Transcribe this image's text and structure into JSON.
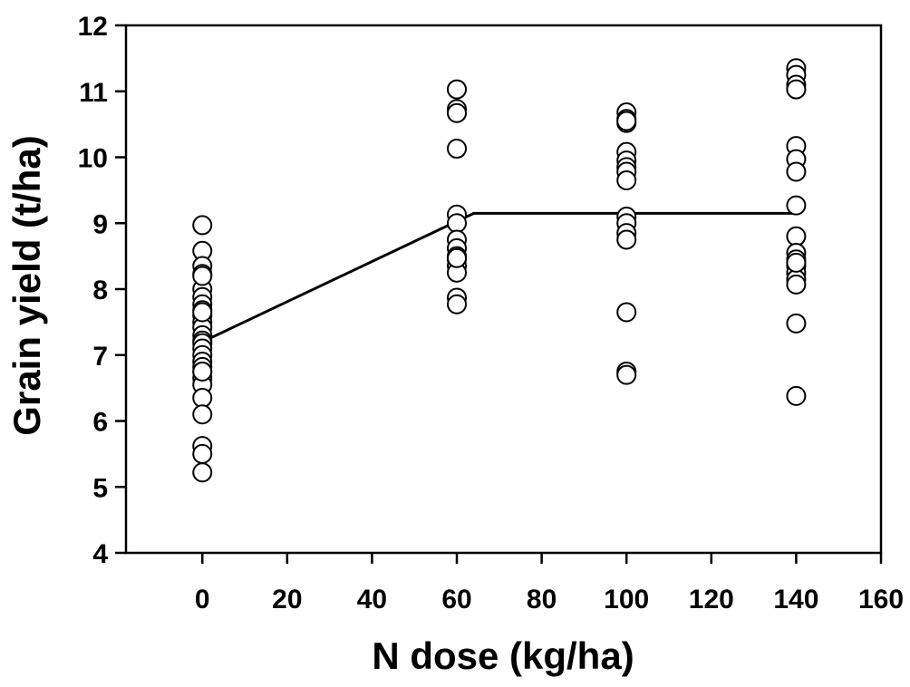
{
  "chart_data": {
    "type": "scatter",
    "title": "",
    "xlabel": "N dose (kg/ha)",
    "ylabel": "Grain yield (t/ha)",
    "xlim": [
      -18,
      160
    ],
    "ylim": [
      4,
      12
    ],
    "xticks": [
      0,
      20,
      40,
      60,
      80,
      100,
      120,
      140,
      160
    ],
    "yticks": [
      4,
      5,
      6,
      7,
      8,
      9,
      10,
      11,
      12
    ],
    "grid": false,
    "legend": "none",
    "marker": "open-circle",
    "series": [
      {
        "x": [
          0,
          0,
          0,
          0,
          0,
          0,
          0,
          0,
          0,
          0,
          0,
          0,
          0,
          0,
          0,
          0,
          0,
          0,
          0,
          0,
          0,
          0,
          0,
          0,
          0,
          0,
          0,
          0,
          0,
          60,
          60,
          60,
          60,
          60,
          60,
          60,
          60,
          60,
          60,
          60,
          60,
          60,
          60,
          60,
          100,
          100,
          100,
          100,
          100,
          100,
          100,
          100,
          100,
          100,
          100,
          100,
          100,
          100,
          100,
          100,
          140,
          140,
          140,
          140,
          140,
          140,
          140,
          140,
          140,
          140,
          140,
          140,
          140,
          140,
          140,
          140,
          140,
          140
        ],
        "y": [
          8.97,
          8.58,
          8.35,
          8.23,
          8.0,
          7.88,
          7.77,
          7.68,
          7.6,
          7.5,
          7.42,
          7.3,
          7.22,
          7.18,
          7.1,
          7.0,
          6.9,
          6.82,
          6.75,
          6.65,
          6.55,
          6.35,
          6.1,
          5.62,
          5.5,
          5.22,
          8.2,
          7.65,
          6.75,
          11.03,
          10.73,
          10.67,
          10.13,
          9.13,
          9.0,
          8.75,
          8.62,
          8.5,
          8.45,
          8.35,
          8.25,
          7.87,
          7.77,
          8.47,
          10.68,
          10.58,
          10.52,
          10.08,
          9.95,
          9.85,
          9.78,
          9.65,
          9.1,
          9.0,
          8.85,
          8.75,
          7.65,
          6.75,
          6.7,
          10.55,
          11.35,
          11.25,
          11.1,
          11.03,
          10.17,
          9.97,
          9.78,
          9.27,
          8.8,
          8.55,
          8.45,
          8.35,
          8.25,
          8.15,
          8.07,
          7.48,
          6.38,
          8.4
        ]
      }
    ],
    "fit_line": {
      "x": [
        0,
        64,
        140
      ],
      "y": [
        7.2,
        9.15,
        9.15
      ]
    }
  }
}
